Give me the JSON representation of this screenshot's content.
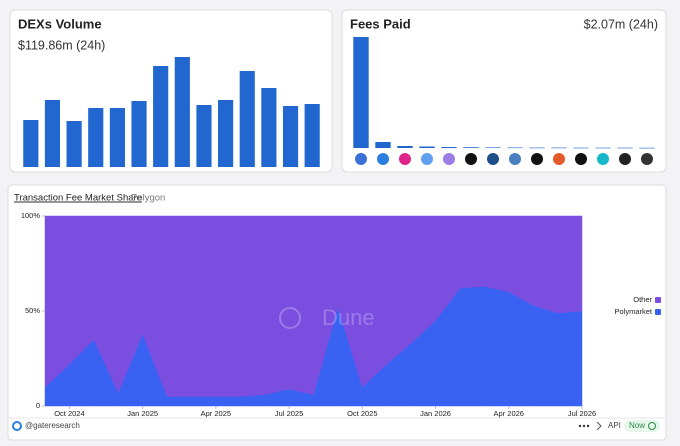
{
  "chart_data": [
    {
      "type": "bar",
      "title": "DEXs Volume",
      "subtitle": "$119.86m (24h)",
      "color": "#2266d0",
      "categories": [
        null,
        null,
        null,
        null,
        null,
        null,
        null,
        null,
        null,
        null,
        null,
        null,
        null,
        null
      ],
      "values": [
        47,
        67,
        46,
        59,
        59,
        66,
        101,
        110,
        62,
        67,
        96,
        79,
        61,
        63
      ],
      "ylim": [
        0,
        115
      ]
    },
    {
      "type": "bar",
      "title": "Fees Paid",
      "subtitle": "$2.07m (24h)",
      "color": "#2266d0",
      "categories": [
        null,
        null,
        null,
        null,
        null,
        null,
        null,
        null,
        null,
        null,
        null,
        null,
        null,
        null
      ],
      "values": [
        111,
        6,
        2,
        1.5,
        1,
        0.8,
        0.6,
        0.5,
        0.4,
        0.4,
        0.3,
        0.3,
        0.3,
        0.2
      ],
      "ylim": [
        0,
        115
      ]
    },
    {
      "type": "area",
      "title": "Transaction Fee Market Share",
      "subtitle": "Polygon",
      "watermark": "Dune",
      "stacked": true,
      "x": [
        "2024-09",
        "2024-10",
        "2024-11",
        "2024-12",
        "2025-01",
        "2025-02",
        "2025-03",
        "2025-04",
        "2025-05",
        "2025-06",
        "2025-07",
        "2025-08",
        "2025-09",
        "2025-10",
        "2025-11",
        "2025-12",
        "2026-01",
        "2026-02",
        "2026-03",
        "2026-04",
        "2026-05",
        "2026-06",
        "2026-07"
      ],
      "series": [
        {
          "name": "Polymarket",
          "color": "#3a62f2",
          "values": [
            10,
            22,
            35,
            7,
            38,
            5,
            5,
            5,
            5,
            6,
            9,
            6,
            52,
            10,
            22,
            33,
            45,
            62,
            63,
            60,
            53,
            49,
            50
          ]
        },
        {
          "name": "Other",
          "color": "#7b4ee0",
          "values": [
            90,
            78,
            65,
            93,
            62,
            95,
            95,
            95,
            95,
            94,
            91,
            94,
            48,
            90,
            78,
            67,
            55,
            38,
            37,
            40,
            47,
            51,
            50
          ]
        }
      ],
      "xlim": [
        "2024-09",
        "2026-07"
      ],
      "xticks": [
        {
          "value": "2024-10",
          "label": "Oct 2024"
        },
        {
          "value": "2025-01",
          "label": "Jan 2025"
        },
        {
          "value": "2025-04",
          "label": "Apr 2025"
        },
        {
          "value": "2025-07",
          "label": "Jul 2025"
        },
        {
          "value": "2025-10",
          "label": "Oct 2025"
        },
        {
          "value": "2026-01",
          "label": "Jan 2026"
        },
        {
          "value": "2026-04",
          "label": "Apr 2026"
        },
        {
          "value": "2026-07",
          "label": "Jul 2026"
        }
      ],
      "ylim": [
        0,
        100
      ],
      "yticks": [
        0,
        {
          "value": 50,
          "label": "50%"
        },
        {
          "value": 100,
          "label": "100%"
        }
      ],
      "legend": "right"
    }
  ],
  "footer": {
    "handle": "@gateresearch",
    "api": "API",
    "status": "Now"
  }
}
